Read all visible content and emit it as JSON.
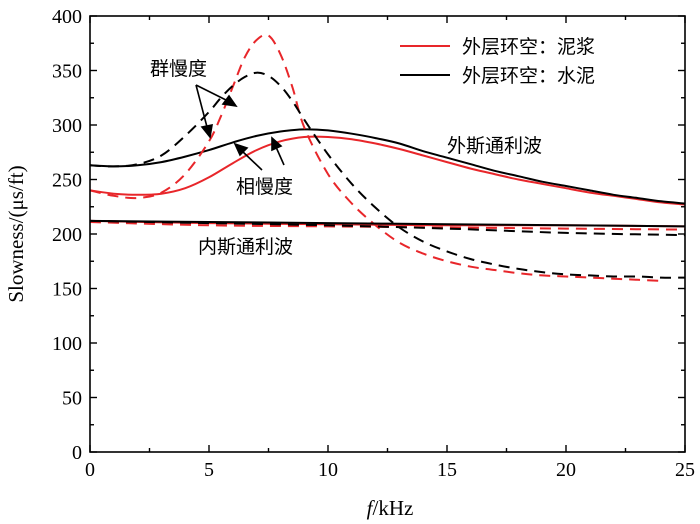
{
  "chart_data": {
    "type": "line",
    "xlabel_italic": "f",
    "xlabel_rest": "/kHz",
    "ylabel": "Slowness/(μs/ft)",
    "xlim": [
      0,
      25
    ],
    "ylim": [
      0,
      400
    ],
    "xticks": [
      0,
      5,
      10,
      15,
      20,
      25
    ],
    "yticks": [
      0,
      50,
      100,
      150,
      200,
      250,
      300,
      350,
      400
    ],
    "legend": [
      {
        "label": "外层环空：泥浆",
        "color": "#e8262a"
      },
      {
        "label": "外层环空：水泥",
        "color": "#000000"
      }
    ],
    "annotations": {
      "group_slowness": "群慢度",
      "phase_slowness": "相慢度",
      "outer_stoneley": "外斯通利波",
      "inner_stoneley": "内斯通利波"
    },
    "series": [
      {
        "name": "外层环空：泥浆 外斯通利波 相慢度",
        "color": "#e8262a",
        "dash": false,
        "x": [
          0,
          1,
          2,
          3,
          4,
          5,
          6,
          7,
          8,
          9,
          10,
          11,
          12,
          13,
          14,
          15,
          16,
          17,
          18,
          19,
          20,
          21,
          22,
          23,
          24,
          25
        ],
        "y": [
          240,
          237,
          236,
          237,
          242,
          252,
          265,
          277,
          285,
          289,
          289,
          287,
          283,
          278,
          272,
          266,
          260,
          255,
          250,
          246,
          242,
          238,
          235,
          232,
          229,
          227
        ]
      },
      {
        "name": "外层环空：水泥 外斯通利波 相慢度",
        "color": "#000000",
        "dash": false,
        "x": [
          0,
          1,
          2,
          3,
          4,
          5,
          6,
          7,
          8,
          9,
          10,
          11,
          12,
          13,
          14,
          15,
          16,
          17,
          18,
          19,
          20,
          21,
          22,
          23,
          24,
          25
        ],
        "y": [
          263,
          262,
          263,
          266,
          271,
          277,
          284,
          290,
          294,
          296,
          295,
          292,
          288,
          283,
          276,
          270,
          264,
          258,
          253,
          248,
          244,
          240,
          236,
          233,
          230,
          228
        ]
      },
      {
        "name": "外层环空：泥浆 外斯通利波 群慢度",
        "color": "#e8262a",
        "dash": true,
        "x": [
          0,
          1,
          2,
          3,
          4,
          5,
          5.5,
          6,
          6.5,
          7,
          7.5,
          8,
          8.5,
          9,
          10,
          11,
          12,
          13,
          14,
          15,
          16,
          17,
          18,
          19,
          20,
          21,
          22,
          23,
          24
        ],
        "y": [
          240,
          235,
          233,
          238,
          255,
          285,
          308,
          335,
          362,
          378,
          382,
          365,
          335,
          298,
          255,
          228,
          208,
          192,
          182,
          175,
          170,
          167,
          164,
          162,
          161,
          160,
          159,
          158,
          157
        ]
      },
      {
        "name": "外层环空：水泥 外斯通利波 群慢度",
        "color": "#000000",
        "dash": true,
        "x": [
          0,
          1,
          2,
          3,
          4,
          5,
          5.5,
          6,
          6.5,
          7,
          7.5,
          8,
          8.5,
          9,
          10,
          11,
          12,
          13,
          14,
          15,
          16,
          17,
          18,
          19,
          20,
          21,
          22,
          23,
          24,
          25
        ],
        "y": [
          263,
          262,
          264,
          272,
          290,
          312,
          325,
          336,
          344,
          348,
          345,
          336,
          322,
          305,
          273,
          246,
          224,
          206,
          193,
          184,
          177,
          172,
          168,
          165,
          163,
          162,
          161,
          161,
          160,
          160
        ]
      },
      {
        "name": "外层环空：泥浆 内斯通利波 相慢度",
        "color": "#e8262a",
        "dash": false,
        "x": [
          0,
          5,
          10,
          15,
          20,
          25
        ],
        "y": [
          212,
          210,
          209,
          208,
          208,
          207
        ]
      },
      {
        "name": "外层环空：水泥 内斯通利波 相慢度",
        "color": "#000000",
        "dash": false,
        "x": [
          0,
          5,
          10,
          15,
          20,
          25
        ],
        "y": [
          212,
          211,
          210,
          209,
          208,
          207
        ]
      },
      {
        "name": "外层环空：泥浆 内斯通利波 群慢度",
        "color": "#e8262a",
        "dash": true,
        "x": [
          0,
          5,
          10,
          15,
          20,
          25
        ],
        "y": [
          211,
          208,
          207,
          206,
          205,
          204
        ]
      },
      {
        "name": "外层环空：水泥 内斯通利波 群慢度",
        "color": "#000000",
        "dash": true,
        "x": [
          0,
          5,
          10,
          15,
          20,
          25
        ],
        "y": [
          212,
          210,
          208,
          205,
          201,
          199
        ]
      }
    ]
  }
}
